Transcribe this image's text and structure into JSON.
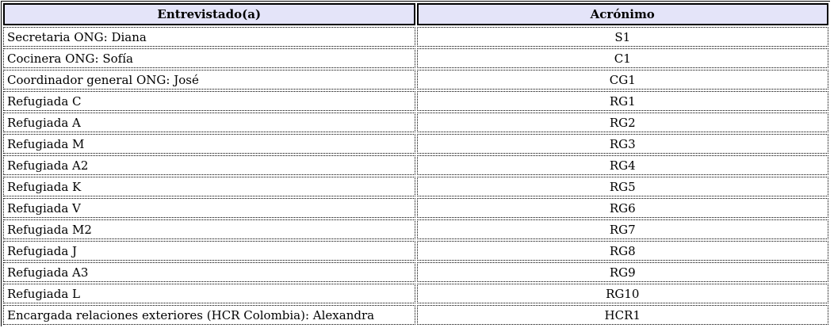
{
  "table": {
    "columns": [
      {
        "label": "Entrevistado(a)"
      },
      {
        "label": "Acrónimo"
      }
    ],
    "rows": [
      {
        "entrevistado": "Secretaria ONG: Diana",
        "acronimo": "S1"
      },
      {
        "entrevistado": "Cocinera ONG: Sofía",
        "acronimo": "C1"
      },
      {
        "entrevistado": "Coordinador general ONG: José",
        "acronimo": "CG1"
      },
      {
        "entrevistado": "Refugiada C",
        "acronimo": "RG1"
      },
      {
        "entrevistado": "Refugiada A",
        "acronimo": "RG2"
      },
      {
        "entrevistado": "Refugiada M",
        "acronimo": "RG3"
      },
      {
        "entrevistado": "Refugiada A2",
        "acronimo": "RG4"
      },
      {
        "entrevistado": "Refugiada K",
        "acronimo": "RG5"
      },
      {
        "entrevistado": "Refugiada V",
        "acronimo": "RG6"
      },
      {
        "entrevistado": "Refugiada M2",
        "acronimo": "RG7"
      },
      {
        "entrevistado": "Refugiada J",
        "acronimo": "RG8"
      },
      {
        "entrevistado": "Refugiada A3",
        "acronimo": "RG9"
      },
      {
        "entrevistado": "Refugiada L",
        "acronimo": "RG10"
      },
      {
        "entrevistado": "Encargada relaciones exteriores (HCR Colombia): Alexandra",
        "acronimo": "HCR1"
      }
    ]
  },
  "colors": {
    "header_bg": "#e4e4f9",
    "border": "#000000",
    "row_bg": "#ffffff",
    "text": "#000000"
  }
}
